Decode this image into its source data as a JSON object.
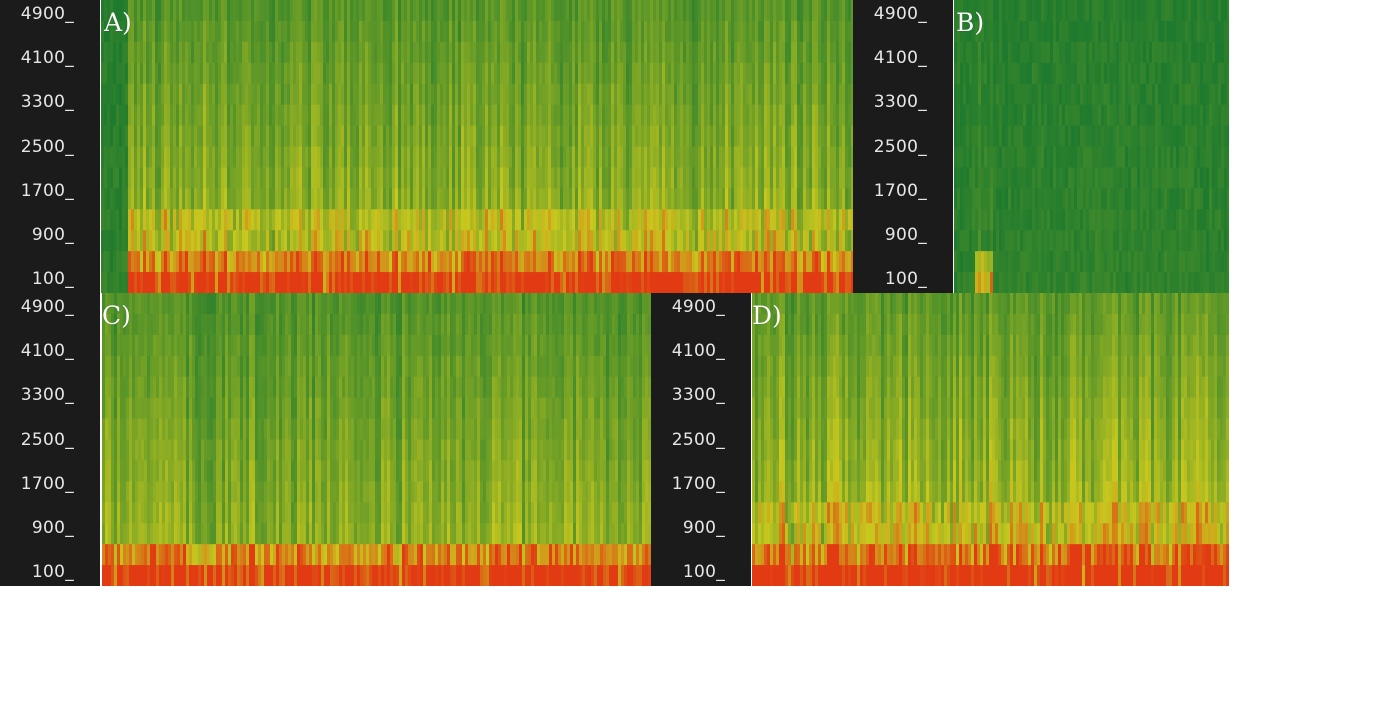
{
  "chart_data": [
    {
      "type": "heatmap",
      "panel": "A)",
      "yticks": [
        "4900_",
        "4100_",
        "3300_",
        "2500_",
        "1700_",
        "900_",
        "100_"
      ],
      "colors": {
        "low": "#1e7a2e",
        "mid": "#c8c81e",
        "high": "#e23a12"
      },
      "activity": {
        "start_fraction": 0.035,
        "end_fraction": 1.0,
        "base_energy": 0.55,
        "band_top_level": 0.25
      }
    },
    {
      "type": "heatmap",
      "panel": "B)",
      "yticks": [
        "4900_",
        "4100_",
        "3300_",
        "2500_",
        "1700_",
        "900_",
        "100_"
      ],
      "colors": {
        "low": "#1e7a2e",
        "mid": "#c8c81e",
        "high": "#e23a12"
      },
      "activity": {
        "start_fraction": 0.07,
        "end_fraction": 0.14,
        "base_energy": 0.15,
        "band_top_level": 0.1
      }
    },
    {
      "type": "heatmap",
      "panel": "C)",
      "yticks": [
        "4900_",
        "4100_",
        "3300_",
        "2500_",
        "1700_",
        "900_",
        "100_"
      ],
      "colors": {
        "low": "#1e7a2e",
        "mid": "#c8c81e",
        "high": "#e23a12"
      },
      "activity": {
        "start_fraction": 0.0,
        "end_fraction": 1.0,
        "base_energy": 0.5,
        "band_top_level": 0.1
      }
    },
    {
      "type": "heatmap",
      "panel": "D)",
      "yticks": [
        "4900_",
        "4100_",
        "3300_",
        "2500_",
        "1700_",
        "900_",
        "100_"
      ],
      "colors": {
        "low": "#1e7a2e",
        "mid": "#c8c81e",
        "high": "#e23a12"
      },
      "activity": {
        "start_fraction": 0.0,
        "end_fraction": 1.0,
        "base_energy": 0.62,
        "band_top_level": 0.3
      }
    }
  ]
}
